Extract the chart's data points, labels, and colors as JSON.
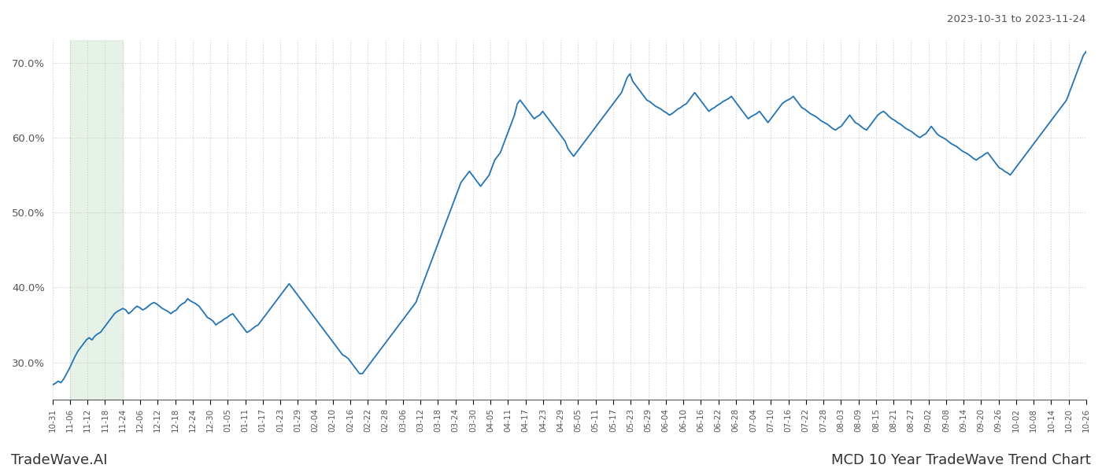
{
  "title_top_right": "2023-10-31 to 2023-11-24",
  "title_bottom_left": "TradeWave.AI",
  "title_bottom_right": "MCD 10 Year TradeWave Trend Chart",
  "line_color": "#2374b5",
  "line_width": 1.3,
  "shaded_color": "#d6ead7",
  "shaded_alpha": 0.6,
  "background_color": "#ffffff",
  "grid_color": "#cccccc",
  "grid_linestyle": ":",
  "ylim": [
    25.0,
    73.0
  ],
  "yticks": [
    30.0,
    40.0,
    50.0,
    60.0,
    70.0
  ],
  "x_labels": [
    "10-31",
    "11-06",
    "11-12",
    "11-18",
    "11-24",
    "12-06",
    "12-12",
    "12-18",
    "12-24",
    "12-30",
    "01-05",
    "01-11",
    "01-17",
    "01-23",
    "01-29",
    "02-04",
    "02-10",
    "02-16",
    "02-22",
    "02-28",
    "03-06",
    "03-12",
    "03-18",
    "03-24",
    "03-30",
    "04-05",
    "04-11",
    "04-17",
    "04-23",
    "04-29",
    "05-05",
    "05-11",
    "05-17",
    "05-23",
    "05-29",
    "06-04",
    "06-10",
    "06-16",
    "06-22",
    "06-28",
    "07-04",
    "07-10",
    "07-16",
    "07-22",
    "07-28",
    "08-03",
    "08-09",
    "08-15",
    "08-21",
    "08-27",
    "09-02",
    "09-08",
    "09-14",
    "09-20",
    "09-26",
    "10-02",
    "10-08",
    "10-14",
    "10-20",
    "10-26"
  ],
  "shaded_label_start": "11-06",
  "shaded_label_end": "11-24",
  "y_values": [
    27.0,
    27.2,
    27.5,
    27.3,
    27.8,
    28.5,
    29.2,
    30.0,
    30.8,
    31.5,
    32.0,
    32.5,
    33.0,
    33.3,
    33.0,
    33.5,
    33.8,
    34.0,
    34.5,
    35.0,
    35.5,
    36.0,
    36.5,
    36.8,
    37.0,
    37.2,
    37.0,
    36.5,
    36.8,
    37.2,
    37.5,
    37.3,
    37.0,
    37.2,
    37.5,
    37.8,
    38.0,
    37.8,
    37.5,
    37.2,
    37.0,
    36.8,
    36.5,
    36.8,
    37.0,
    37.5,
    37.8,
    38.0,
    38.5,
    38.2,
    38.0,
    37.8,
    37.5,
    37.0,
    36.5,
    36.0,
    35.8,
    35.5,
    35.0,
    35.3,
    35.5,
    35.8,
    36.0,
    36.3,
    36.5,
    36.0,
    35.5,
    35.0,
    34.5,
    34.0,
    34.2,
    34.5,
    34.8,
    35.0,
    35.5,
    36.0,
    36.5,
    37.0,
    37.5,
    38.0,
    38.5,
    39.0,
    39.5,
    40.0,
    40.5,
    40.0,
    39.5,
    39.0,
    38.5,
    38.0,
    37.5,
    37.0,
    36.5,
    36.0,
    35.5,
    35.0,
    34.5,
    34.0,
    33.5,
    33.0,
    32.5,
    32.0,
    31.5,
    31.0,
    30.8,
    30.5,
    30.0,
    29.5,
    29.0,
    28.5,
    28.5,
    29.0,
    29.5,
    30.0,
    30.5,
    31.0,
    31.5,
    32.0,
    32.5,
    33.0,
    33.5,
    34.0,
    34.5,
    35.0,
    35.5,
    36.0,
    36.5,
    37.0,
    37.5,
    38.0,
    39.0,
    40.0,
    41.0,
    42.0,
    43.0,
    44.0,
    45.0,
    46.0,
    47.0,
    48.0,
    49.0,
    50.0,
    51.0,
    52.0,
    53.0,
    54.0,
    54.5,
    55.0,
    55.5,
    55.0,
    54.5,
    54.0,
    53.5,
    54.0,
    54.5,
    55.0,
    56.0,
    57.0,
    57.5,
    58.0,
    59.0,
    60.0,
    61.0,
    62.0,
    63.0,
    64.5,
    65.0,
    64.5,
    64.0,
    63.5,
    63.0,
    62.5,
    62.8,
    63.0,
    63.5,
    63.0,
    62.5,
    62.0,
    61.5,
    61.0,
    60.5,
    60.0,
    59.5,
    58.5,
    58.0,
    57.5,
    58.0,
    58.5,
    59.0,
    59.5,
    60.0,
    60.5,
    61.0,
    61.5,
    62.0,
    62.5,
    63.0,
    63.5,
    64.0,
    64.5,
    65.0,
    65.5,
    66.0,
    67.0,
    68.0,
    68.5,
    67.5,
    67.0,
    66.5,
    66.0,
    65.5,
    65.0,
    64.8,
    64.5,
    64.2,
    64.0,
    63.8,
    63.5,
    63.3,
    63.0,
    63.2,
    63.5,
    63.8,
    64.0,
    64.3,
    64.5,
    65.0,
    65.5,
    66.0,
    65.5,
    65.0,
    64.5,
    64.0,
    63.5,
    63.8,
    64.0,
    64.3,
    64.5,
    64.8,
    65.0,
    65.2,
    65.5,
    65.0,
    64.5,
    64.0,
    63.5,
    63.0,
    62.5,
    62.8,
    63.0,
    63.2,
    63.5,
    63.0,
    62.5,
    62.0,
    62.5,
    63.0,
    63.5,
    64.0,
    64.5,
    64.8,
    65.0,
    65.2,
    65.5,
    65.0,
    64.5,
    64.0,
    63.8,
    63.5,
    63.2,
    63.0,
    62.8,
    62.5,
    62.2,
    62.0,
    61.8,
    61.5,
    61.2,
    61.0,
    61.3,
    61.5,
    62.0,
    62.5,
    63.0,
    62.5,
    62.0,
    61.8,
    61.5,
    61.2,
    61.0,
    61.5,
    62.0,
    62.5,
    63.0,
    63.3,
    63.5,
    63.2,
    62.8,
    62.5,
    62.3,
    62.0,
    61.8,
    61.5,
    61.2,
    61.0,
    60.8,
    60.5,
    60.2,
    60.0,
    60.3,
    60.5,
    61.0,
    61.5,
    61.0,
    60.5,
    60.2,
    60.0,
    59.8,
    59.5,
    59.2,
    59.0,
    58.8,
    58.5,
    58.2,
    58.0,
    57.8,
    57.5,
    57.2,
    57.0,
    57.3,
    57.5,
    57.8,
    58.0,
    57.5,
    57.0,
    56.5,
    56.0,
    55.8,
    55.5,
    55.3,
    55.0,
    55.5,
    56.0,
    56.5,
    57.0,
    57.5,
    58.0,
    58.5,
    59.0,
    59.5,
    60.0,
    60.5,
    61.0,
    61.5,
    62.0,
    62.5,
    63.0,
    63.5,
    64.0,
    64.5,
    65.0,
    66.0,
    67.0,
    68.0,
    69.0,
    70.0,
    71.0,
    71.5
  ]
}
